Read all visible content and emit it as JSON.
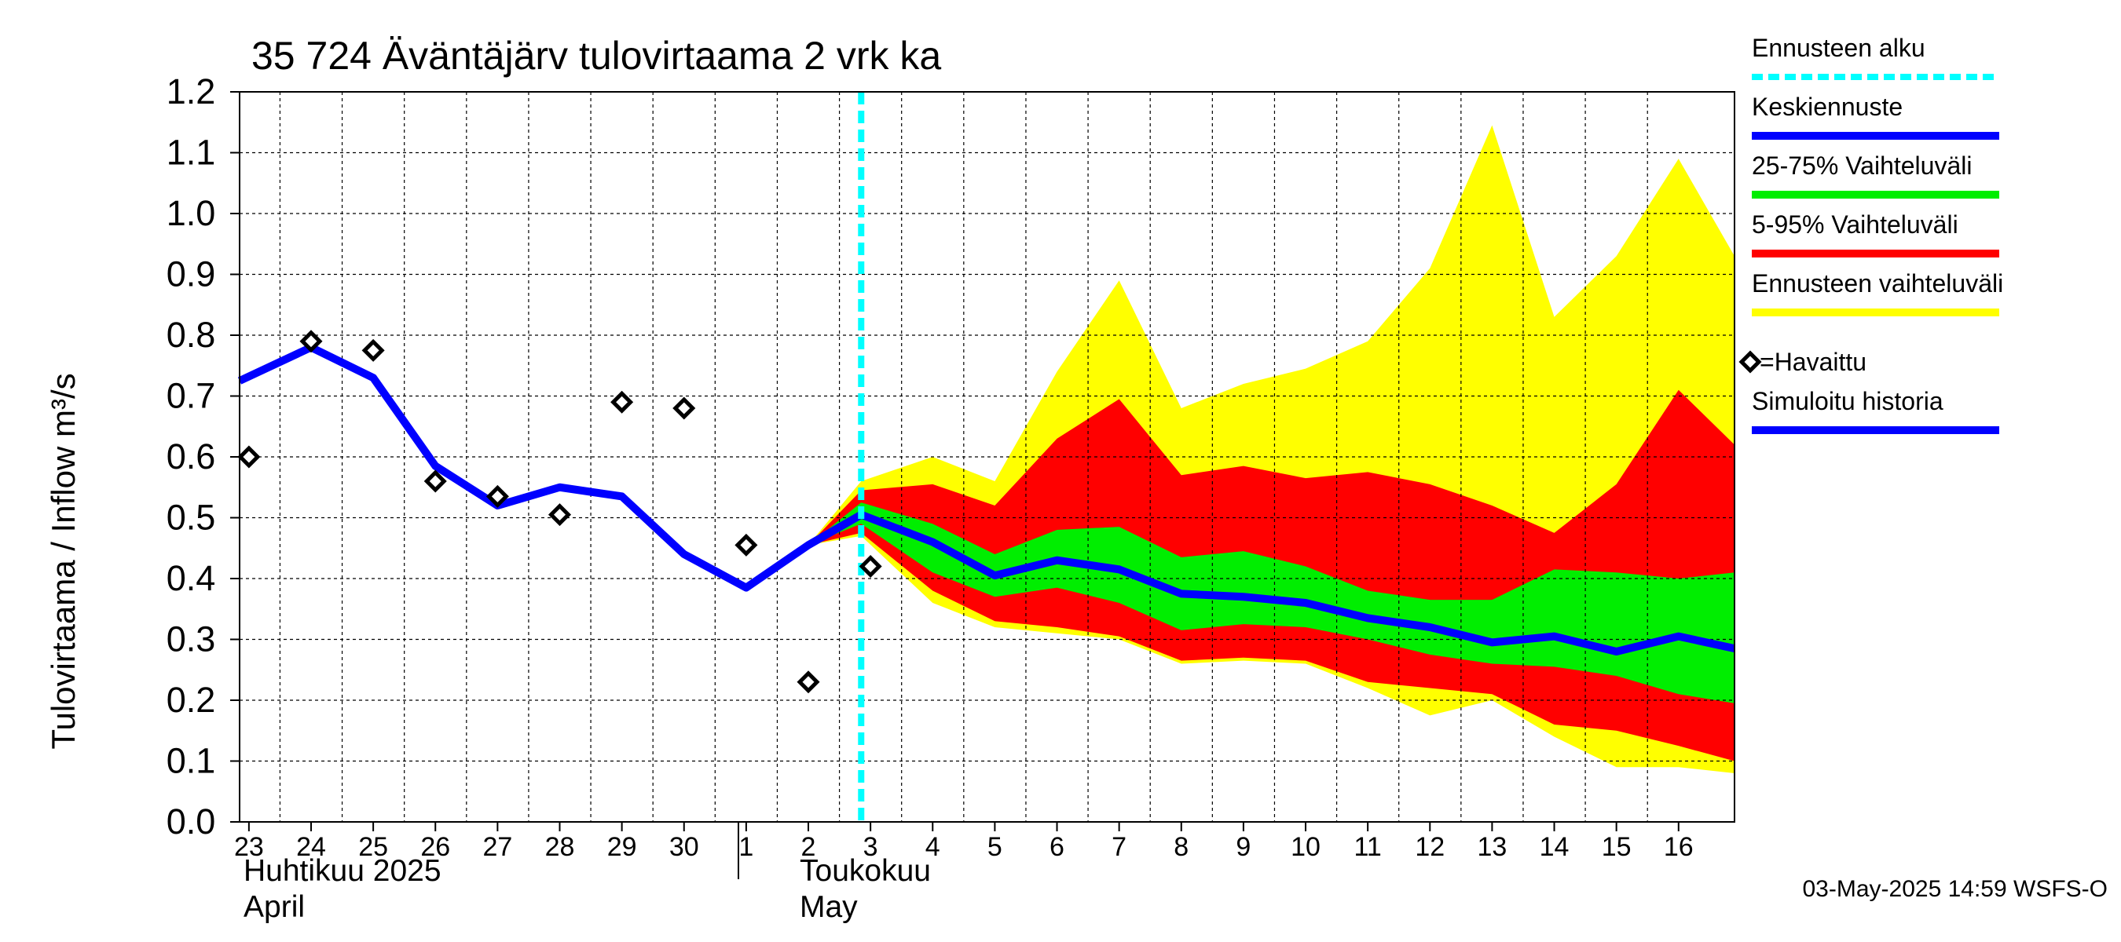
{
  "chart_data": {
    "type": "area",
    "title": "35 724 Äväntäjärv tulovirtaama 2 vrk ka",
    "ylabel": "Tulovirtaama / Inflow    m³/s",
    "ylim": [
      0.0,
      1.2
    ],
    "yticks": [
      "0.0",
      "0.1",
      "0.2",
      "0.3",
      "0.4",
      "0.5",
      "0.6",
      "0.7",
      "0.8",
      "0.9",
      "1.0",
      "1.1",
      "1.2"
    ],
    "xlim": [
      22.85,
      46.9
    ],
    "grid": true,
    "x_ticks": [
      {
        "x": 23,
        "label": "23"
      },
      {
        "x": 24,
        "label": "24"
      },
      {
        "x": 25,
        "label": "25"
      },
      {
        "x": 26,
        "label": "26"
      },
      {
        "x": 27,
        "label": "27"
      },
      {
        "x": 28,
        "label": "28"
      },
      {
        "x": 29,
        "label": "29"
      },
      {
        "x": 30,
        "label": "30"
      },
      {
        "x": 31,
        "label": "1"
      },
      {
        "x": 32,
        "label": "2"
      },
      {
        "x": 33,
        "label": "3"
      },
      {
        "x": 34,
        "label": "4"
      },
      {
        "x": 35,
        "label": "5"
      },
      {
        "x": 36,
        "label": "6"
      },
      {
        "x": 37,
        "label": "7"
      },
      {
        "x": 38,
        "label": "8"
      },
      {
        "x": 39,
        "label": "9"
      },
      {
        "x": 40,
        "label": "10"
      },
      {
        "x": 41,
        "label": "11"
      },
      {
        "x": 42,
        "label": "12"
      },
      {
        "x": 43,
        "label": "13"
      },
      {
        "x": 44,
        "label": "14"
      },
      {
        "x": 45,
        "label": "15"
      },
      {
        "x": 46,
        "label": "16"
      }
    ],
    "month_labels": {
      "april_fi": "Huhtikuu  2025",
      "april_en": "April",
      "may_fi": "Toukokuu",
      "may_en": "May"
    },
    "forecast_start_x": 32.85,
    "series": [
      {
        "name": "Ennusteen vaihteluväli",
        "color": "#ffff00",
        "x": [
          32,
          32.85,
          34,
          35,
          36,
          37,
          38,
          39,
          40,
          41,
          42,
          43,
          44,
          45,
          46,
          46.9
        ],
        "upper": [
          0.455,
          0.56,
          0.6,
          0.56,
          0.74,
          0.89,
          0.68,
          0.72,
          0.745,
          0.79,
          0.91,
          1.145,
          0.83,
          0.93,
          1.09,
          0.93
        ],
        "lower": [
          0.455,
          0.47,
          0.36,
          0.32,
          0.31,
          0.3,
          0.26,
          0.265,
          0.26,
          0.22,
          0.175,
          0.2,
          0.14,
          0.09,
          0.09,
          0.08
        ]
      },
      {
        "name": "5-95% Vaihteluväli",
        "color": "#ff0000",
        "x": [
          32,
          32.85,
          34,
          35,
          36,
          37,
          38,
          39,
          40,
          41,
          42,
          43,
          44,
          45,
          46,
          46.9
        ],
        "upper": [
          0.455,
          0.545,
          0.555,
          0.52,
          0.63,
          0.695,
          0.57,
          0.585,
          0.565,
          0.575,
          0.555,
          0.52,
          0.475,
          0.555,
          0.71,
          0.62
        ],
        "lower": [
          0.455,
          0.475,
          0.38,
          0.33,
          0.32,
          0.305,
          0.265,
          0.27,
          0.265,
          0.23,
          0.22,
          0.21,
          0.16,
          0.15,
          0.125,
          0.1
        ]
      },
      {
        "name": "25-75% Vaihteluväli",
        "color": "#00ee00",
        "x": [
          32,
          32.85,
          34,
          35,
          36,
          37,
          38,
          39,
          40,
          41,
          42,
          43,
          44,
          45,
          46,
          46.9
        ],
        "upper": [
          0.455,
          0.525,
          0.49,
          0.44,
          0.48,
          0.485,
          0.435,
          0.445,
          0.42,
          0.38,
          0.365,
          0.365,
          0.415,
          0.41,
          0.4,
          0.41
        ],
        "lower": [
          0.455,
          0.49,
          0.41,
          0.37,
          0.385,
          0.36,
          0.315,
          0.325,
          0.32,
          0.3,
          0.275,
          0.26,
          0.255,
          0.24,
          0.21,
          0.195
        ]
      },
      {
        "name": "Simuloitu historia",
        "color": "#0000ff",
        "x": [
          22.85,
          24,
          25,
          26,
          27,
          28,
          29,
          30,
          31,
          32,
          32.85
        ],
        "values": [
          0.725,
          0.78,
          0.73,
          0.585,
          0.52,
          0.55,
          0.535,
          0.44,
          0.385,
          0.455,
          0.505
        ]
      },
      {
        "name": "Keskiennuste",
        "color": "#0000ff",
        "x": [
          32.85,
          34,
          35,
          36,
          37,
          38,
          39,
          40,
          41,
          42,
          43,
          44,
          45,
          46,
          46.9
        ],
        "values": [
          0.505,
          0.46,
          0.405,
          0.43,
          0.415,
          0.375,
          0.37,
          0.36,
          0.335,
          0.32,
          0.295,
          0.305,
          0.28,
          0.305,
          0.285
        ]
      },
      {
        "name": "Havaittu",
        "x": [
          23,
          24,
          25,
          26,
          27,
          28,
          29,
          30,
          31,
          32,
          33
        ],
        "values": [
          0.6,
          0.79,
          0.775,
          0.56,
          0.535,
          0.505,
          0.69,
          0.68,
          0.455,
          0.23,
          0.42
        ]
      }
    ],
    "legend": {
      "placement": "right",
      "entries": [
        {
          "label": "Ennusteen alku",
          "color": "#00ffff",
          "style": "dashed"
        },
        {
          "label": "Keskiennuste",
          "color": "#0000ff",
          "style": "solid"
        },
        {
          "label": "25-75% Vaihteluväli",
          "color": "#00ee00",
          "style": "solid"
        },
        {
          "label": "5-95% Vaihteluväli",
          "color": "#ff0000",
          "style": "solid"
        },
        {
          "label": "Ennusteen vaihteluväli",
          "color": "#ffff00",
          "style": "solid"
        },
        {
          "label": "=Havaittu",
          "color": "#000000",
          "style": "marker"
        },
        {
          "label": "Simuloitu historia",
          "color": "#0000ff",
          "style": "solid"
        }
      ]
    },
    "footer": "03-May-2025 14:59 WSFS-O"
  }
}
